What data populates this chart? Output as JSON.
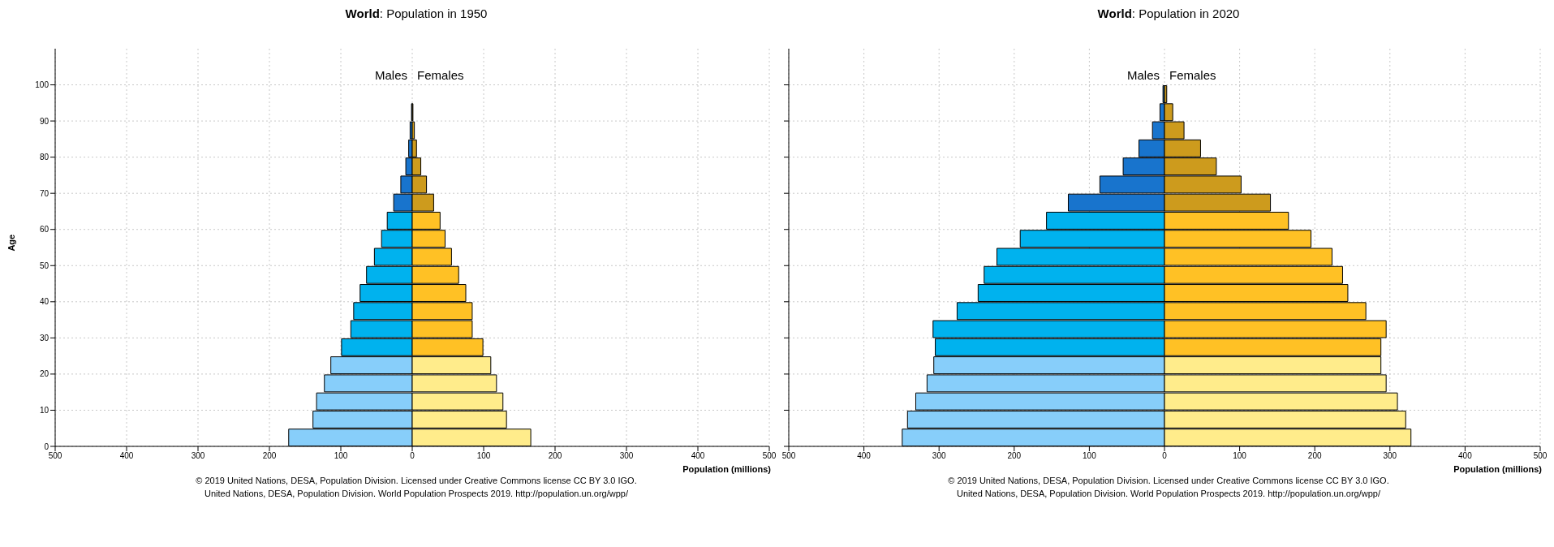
{
  "chart_data": [
    {
      "type": "bar",
      "orientation": "horizontal",
      "stacked": true,
      "title": "World: Population in 1950",
      "xlabel": "Population (millions)",
      "ylabel": "Age",
      "x": [
        2.5,
        7.5,
        12.5,
        17.5,
        22.5,
        27.5,
        32.5,
        37.5,
        42.5,
        47.5,
        52.5,
        57.5,
        62.5,
        67.5,
        72.5,
        77.5,
        82.5,
        87.5,
        92.5,
        97.5,
        102.5
      ],
      "series": [
        {
          "name": "Males",
          "values": [
            -173,
            -139,
            -134,
            -123,
            -114,
            -99,
            -86,
            -82,
            -73,
            -64,
            -53,
            -43,
            -35,
            -26,
            -16,
            -9,
            -5,
            -3,
            -1,
            0,
            0
          ],
          "colors": [
            "#87cefa",
            "#87cefa",
            "#87cefa",
            "#87cefa",
            "#87cefa",
            "#00b2ee",
            "#00b2ee",
            "#00b2ee",
            "#00b2ee",
            "#00b2ee",
            "#00b2ee",
            "#00b2ee",
            "#00b2ee",
            "#1874cd",
            "#1874cd",
            "#1874cd",
            "#1874cd",
            "#1874cd",
            "#1874cd",
            "#1874cd",
            "#1874cd"
          ]
        },
        {
          "name": "Females",
          "values": [
            166,
            132,
            127,
            118,
            110,
            99,
            84,
            84,
            75,
            65,
            55,
            46,
            39,
            30,
            20,
            12,
            6,
            3,
            1,
            0,
            0
          ],
          "colors": [
            "#ffec8b",
            "#ffec8b",
            "#ffec8b",
            "#ffec8b",
            "#ffec8b",
            "#ffc125",
            "#ffc125",
            "#ffc125",
            "#ffc125",
            "#ffc125",
            "#ffc125",
            "#ffc125",
            "#ffc125",
            "#cd9b1d",
            "#cd9b1d",
            "#cd9b1d",
            "#cd9b1d",
            "#cd9b1d",
            "#cd9b1d",
            "#cd9b1d",
            "#cd9b1d"
          ]
        }
      ],
      "xlim": [
        -500,
        500
      ],
      "xticks": [
        {
          "value": -500,
          "label": "500"
        },
        {
          "value": -400,
          "label": "400"
        },
        {
          "value": -300,
          "label": "300"
        },
        {
          "value": -200,
          "label": "200"
        },
        {
          "value": -100,
          "label": "100"
        },
        0,
        100,
        200,
        300,
        400,
        500
      ],
      "ylim": [
        0,
        110
      ],
      "yticks": [
        0,
        10,
        20,
        30,
        40,
        50,
        60,
        70,
        80,
        90,
        100
      ],
      "grid": true,
      "legend": false,
      "annotations": [
        "© 2019 United Nations, DESA, Population Division. Licensed under Creative Commons license CC BY 3.0 IGO.",
        "United Nations, DESA, Population Division. World Population Prospects 2019. http://population.un.org/wpp/"
      ]
    },
    {
      "type": "bar",
      "orientation": "horizontal",
      "stacked": true,
      "title": "World: Population in 2020",
      "xlabel": "Population (millions)",
      "x": [
        2.5,
        7.5,
        12.5,
        17.5,
        22.5,
        27.5,
        32.5,
        37.5,
        42.5,
        47.5,
        52.5,
        57.5,
        62.5,
        67.5,
        72.5,
        77.5,
        82.5,
        87.5,
        92.5,
        97.5,
        102.5
      ],
      "series": [
        {
          "name": "Males",
          "values": [
            -349,
            -342,
            -331,
            -316,
            -307,
            -305,
            -308,
            -276,
            -248,
            -240,
            -223,
            -192,
            -157,
            -128,
            -86,
            -55,
            -34,
            -16,
            -6,
            -2,
            0
          ],
          "colors": [
            "#87cefa",
            "#87cefa",
            "#87cefa",
            "#87cefa",
            "#87cefa",
            "#00b2ee",
            "#00b2ee",
            "#00b2ee",
            "#00b2ee",
            "#00b2ee",
            "#00b2ee",
            "#00b2ee",
            "#00b2ee",
            "#1874cd",
            "#1874cd",
            "#1874cd",
            "#1874cd",
            "#1874cd",
            "#1874cd",
            "#1874cd",
            "#1874cd"
          ]
        },
        {
          "name": "Females",
          "values": [
            328,
            321,
            310,
            295,
            288,
            288,
            295,
            268,
            244,
            237,
            223,
            195,
            165,
            141,
            102,
            69,
            48,
            26,
            11,
            3,
            0
          ],
          "colors": [
            "#ffec8b",
            "#ffec8b",
            "#ffec8b",
            "#ffec8b",
            "#ffec8b",
            "#ffc125",
            "#ffc125",
            "#ffc125",
            "#ffc125",
            "#ffc125",
            "#ffc125",
            "#ffc125",
            "#ffc125",
            "#cd9b1d",
            "#cd9b1d",
            "#cd9b1d",
            "#cd9b1d",
            "#cd9b1d",
            "#cd9b1d",
            "#cd9b1d",
            "#cd9b1d"
          ]
        }
      ],
      "xlim": [
        -500,
        500
      ],
      "xticks": [
        {
          "value": -500,
          "label": "500"
        },
        {
          "value": -400,
          "label": "400"
        },
        {
          "value": -300,
          "label": "300"
        },
        {
          "value": -200,
          "label": "200"
        },
        {
          "value": -100,
          "label": "100"
        },
        0,
        100,
        200,
        300,
        400,
        500
      ],
      "ylim": [
        0,
        110
      ],
      "yticks": [
        0,
        10,
        20,
        30,
        40,
        50,
        60,
        70,
        80,
        90,
        100
      ],
      "tick_labels": "x",
      "grid": true,
      "legend": false,
      "annotations": [
        "© 2019 United Nations, DESA, Population Division. Licensed under Creative Commons license CC BY 3.0 IGO.",
        "United Nations, DESA, Population Division. World Population Prospects 2019. http://population.un.org/wpp/"
      ]
    }
  ]
}
